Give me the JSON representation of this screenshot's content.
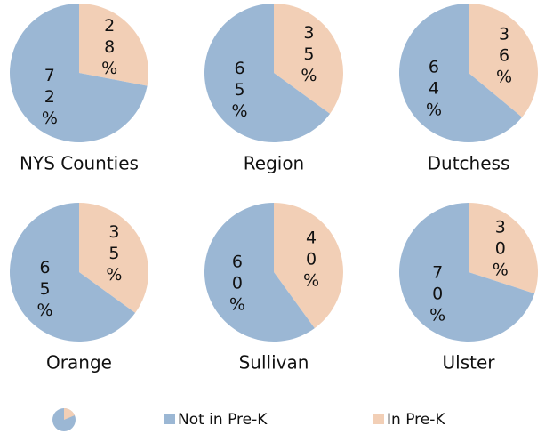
{
  "chart_data": [
    {
      "type": "pie",
      "title": "NYS Counties",
      "categories": [
        "In Pre-K",
        "Not in Pre-K"
      ],
      "values": [
        28,
        72
      ],
      "value_labels": [
        "28%",
        "72%"
      ],
      "colors": [
        "#f2cfb6",
        "#9bb7d4"
      ]
    },
    {
      "type": "pie",
      "title": "Region",
      "categories": [
        "In Pre-K",
        "Not in Pre-K"
      ],
      "values": [
        35,
        65
      ],
      "value_labels": [
        "35%",
        "65%"
      ],
      "colors": [
        "#f2cfb6",
        "#9bb7d4"
      ]
    },
    {
      "type": "pie",
      "title": "Dutchess",
      "categories": [
        "In Pre-K",
        "Not in Pre-K"
      ],
      "values": [
        36,
        64
      ],
      "value_labels": [
        "36%",
        "64%"
      ],
      "colors": [
        "#f2cfb6",
        "#9bb7d4"
      ]
    },
    {
      "type": "pie",
      "title": "Orange",
      "categories": [
        "In Pre-K",
        "Not in Pre-K"
      ],
      "values": [
        35,
        65
      ],
      "value_labels": [
        "35%",
        "65%"
      ],
      "colors": [
        "#f2cfb6",
        "#9bb7d4"
      ]
    },
    {
      "type": "pie",
      "title": "Sullivan",
      "categories": [
        "In Pre-K",
        "Not in Pre-K"
      ],
      "values": [
        40,
        60
      ],
      "value_labels": [
        "40%",
        "60%"
      ],
      "colors": [
        "#f2cfb6",
        "#9bb7d4"
      ]
    },
    {
      "type": "pie",
      "title": "Ulster",
      "categories": [
        "In Pre-K",
        "Not in Pre-K"
      ],
      "values": [
        30,
        70
      ],
      "value_labels": [
        "30%",
        "70%"
      ],
      "colors": [
        "#f2cfb6",
        "#9bb7d4"
      ]
    }
  ]
}
